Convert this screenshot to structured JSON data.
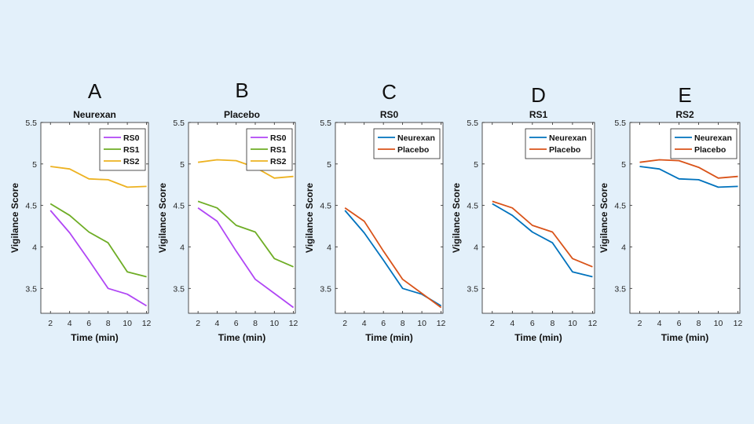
{
  "chart_data": [
    {
      "type": "line",
      "panel_letter": "A",
      "title": "Neurexan",
      "xlabel": "Time (min)",
      "ylabel": "Vigilance Score",
      "x": [
        2,
        4,
        6,
        8,
        10,
        12
      ],
      "xticks": [
        "2",
        "4",
        "6",
        "8",
        "10",
        "12"
      ],
      "ylim": [
        3.2,
        5.5
      ],
      "yticks": [
        "3.5",
        "4",
        "4.5",
        "5",
        "5.5"
      ],
      "legend_position": "top-right",
      "series": [
        {
          "name": "RS0",
          "color": "#b046f5",
          "values": [
            4.44,
            4.17,
            3.84,
            3.5,
            3.43,
            3.29
          ]
        },
        {
          "name": "RS1",
          "color": "#6ead25",
          "values": [
            4.52,
            4.38,
            4.18,
            4.05,
            3.7,
            3.64
          ]
        },
        {
          "name": "RS2",
          "color": "#edb221",
          "values": [
            4.97,
            4.94,
            4.82,
            4.81,
            4.72,
            4.73
          ]
        }
      ]
    },
    {
      "type": "line",
      "panel_letter": "B",
      "title": "Placebo",
      "xlabel": "Time (min)",
      "ylabel": "Vigilance Score",
      "x": [
        2,
        4,
        6,
        8,
        10,
        12
      ],
      "xticks": [
        "2",
        "4",
        "6",
        "8",
        "10",
        "12"
      ],
      "ylim": [
        3.2,
        5.5
      ],
      "yticks": [
        "3.5",
        "4",
        "4.5",
        "5",
        "5.5"
      ],
      "legend_position": "top-right",
      "series": [
        {
          "name": "RS0",
          "color": "#b046f5",
          "values": [
            4.47,
            4.31,
            3.95,
            3.61,
            3.44,
            3.27
          ]
        },
        {
          "name": "RS1",
          "color": "#6ead25",
          "values": [
            4.55,
            4.47,
            4.26,
            4.18,
            3.86,
            3.76
          ]
        },
        {
          "name": "RS2",
          "color": "#edb221",
          "values": [
            5.02,
            5.05,
            5.04,
            4.96,
            4.83,
            4.85
          ]
        }
      ]
    },
    {
      "type": "line",
      "panel_letter": "C",
      "title": "RS0",
      "xlabel": "Time (min)",
      "ylabel": "Vigilance Score",
      "x": [
        2,
        4,
        6,
        8,
        10,
        12
      ],
      "xticks": [
        "2",
        "4",
        "6",
        "8",
        "10",
        "12"
      ],
      "ylim": [
        3.2,
        5.5
      ],
      "yticks": [
        "3.5",
        "4",
        "4.5",
        "5",
        "5.5"
      ],
      "legend_position": "top-right",
      "series": [
        {
          "name": "Neurexan",
          "color": "#0072bd",
          "values": [
            4.44,
            4.17,
            3.84,
            3.5,
            3.43,
            3.29
          ]
        },
        {
          "name": "Placebo",
          "color": "#d95319",
          "values": [
            4.47,
            4.31,
            3.95,
            3.61,
            3.44,
            3.27
          ]
        }
      ]
    },
    {
      "type": "line",
      "panel_letter": "D",
      "title": "RS1",
      "xlabel": "Time (min)",
      "ylabel": "Vigilance Score",
      "x": [
        2,
        4,
        6,
        8,
        10,
        12
      ],
      "xticks": [
        "2",
        "4",
        "6",
        "8",
        "10",
        "12"
      ],
      "ylim": [
        3.2,
        5.5
      ],
      "yticks": [
        "3.5",
        "4",
        "4.5",
        "5",
        "5.5"
      ],
      "legend_position": "top-right",
      "series": [
        {
          "name": "Neurexan",
          "color": "#0072bd",
          "values": [
            4.52,
            4.38,
            4.18,
            4.05,
            3.7,
            3.64
          ]
        },
        {
          "name": "Placebo",
          "color": "#d95319",
          "values": [
            4.55,
            4.47,
            4.26,
            4.18,
            3.86,
            3.76
          ]
        }
      ]
    },
    {
      "type": "line",
      "panel_letter": "E",
      "title": "RS2",
      "xlabel": "Time (min)",
      "ylabel": "Vigilance Score",
      "x": [
        2,
        4,
        6,
        8,
        10,
        12
      ],
      "xticks": [
        "2",
        "4",
        "6",
        "8",
        "10",
        "12"
      ],
      "ylim": [
        3.2,
        5.5
      ],
      "yticks": [
        "3.5",
        "4",
        "4.5",
        "5",
        "5.5"
      ],
      "legend_position": "top-right",
      "series": [
        {
          "name": "Neurexan",
          "color": "#0072bd",
          "values": [
            4.97,
            4.94,
            4.82,
            4.81,
            4.72,
            4.73
          ]
        },
        {
          "name": "Placebo",
          "color": "#d95319",
          "values": [
            5.02,
            5.05,
            5.04,
            4.96,
            4.83,
            4.85
          ]
        }
      ]
    }
  ]
}
